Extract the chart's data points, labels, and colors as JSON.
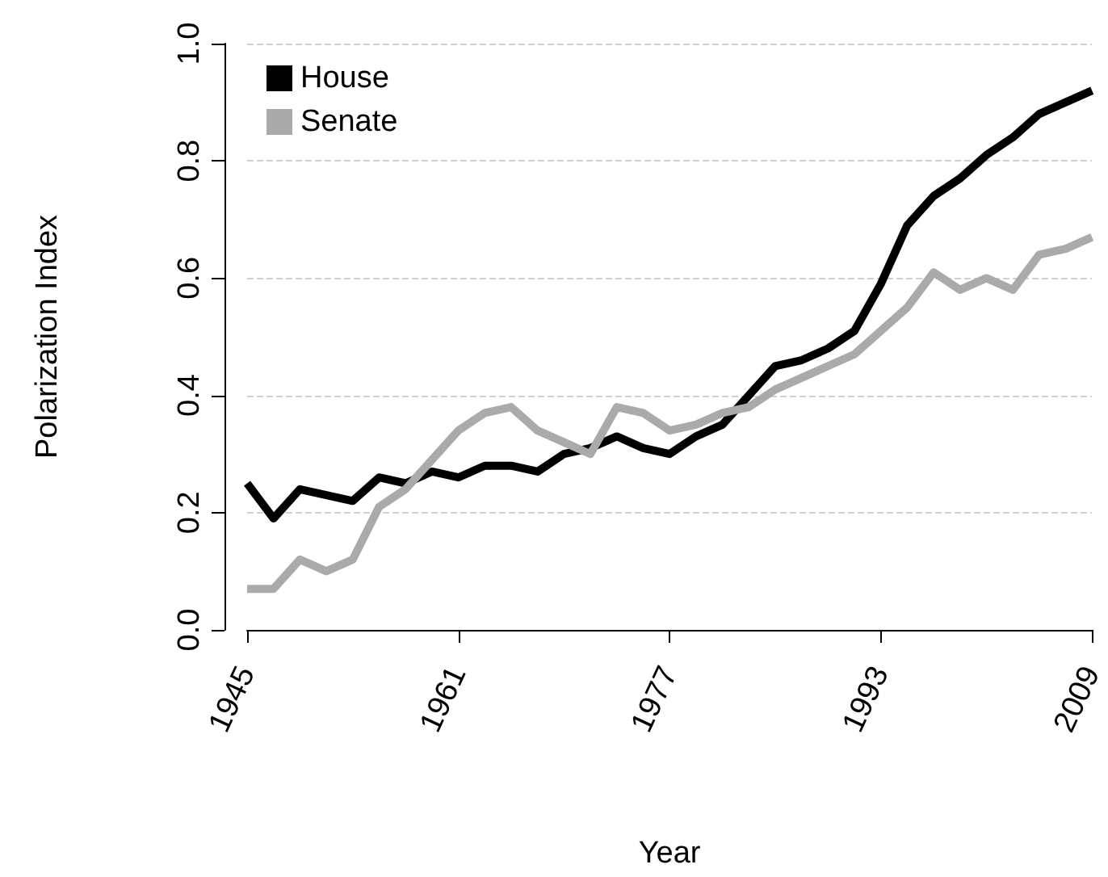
{
  "chart_data": {
    "type": "line",
    "xlabel": "Year",
    "ylabel": "Polarization Index",
    "x": [
      1945,
      1947,
      1949,
      1951,
      1953,
      1955,
      1957,
      1959,
      1961,
      1963,
      1965,
      1967,
      1969,
      1971,
      1973,
      1975,
      1977,
      1979,
      1981,
      1983,
      1985,
      1987,
      1989,
      1991,
      1993,
      1995,
      1997,
      1999,
      2001,
      2003,
      2005,
      2007,
      2009
    ],
    "series": [
      {
        "name": "House",
        "color": "#000000",
        "values": [
          0.25,
          0.19,
          0.24,
          0.23,
          0.22,
          0.26,
          0.25,
          0.27,
          0.26,
          0.28,
          0.28,
          0.27,
          0.3,
          0.31,
          0.33,
          0.31,
          0.3,
          0.33,
          0.35,
          0.4,
          0.45,
          0.46,
          0.48,
          0.51,
          0.59,
          0.69,
          0.74,
          0.77,
          0.81,
          0.84,
          0.88,
          0.9,
          0.92
        ]
      },
      {
        "name": "Senate",
        "color": "#aaaaaa",
        "values": [
          0.07,
          0.07,
          0.12,
          0.1,
          0.12,
          0.21,
          0.24,
          0.29,
          0.34,
          0.37,
          0.38,
          0.34,
          0.32,
          0.3,
          0.38,
          0.37,
          0.34,
          0.35,
          0.37,
          0.38,
          0.41,
          0.43,
          0.45,
          0.47,
          0.51,
          0.55,
          0.61,
          0.58,
          0.6,
          0.58,
          0.64,
          0.65,
          0.67
        ]
      }
    ],
    "xlim": [
      1945,
      2009
    ],
    "xticks": [
      1945,
      1961,
      1977,
      1993,
      2009
    ],
    "ylim": [
      0,
      1
    ],
    "yticks": [
      {
        "value": 0,
        "label": "0.0"
      },
      0.2,
      0.4,
      0.6,
      0.8,
      {
        "value": 1,
        "label": "1.0"
      }
    ],
    "grid": "y",
    "legend": "top left",
    "marker": "none",
    "line_style": "solid"
  }
}
